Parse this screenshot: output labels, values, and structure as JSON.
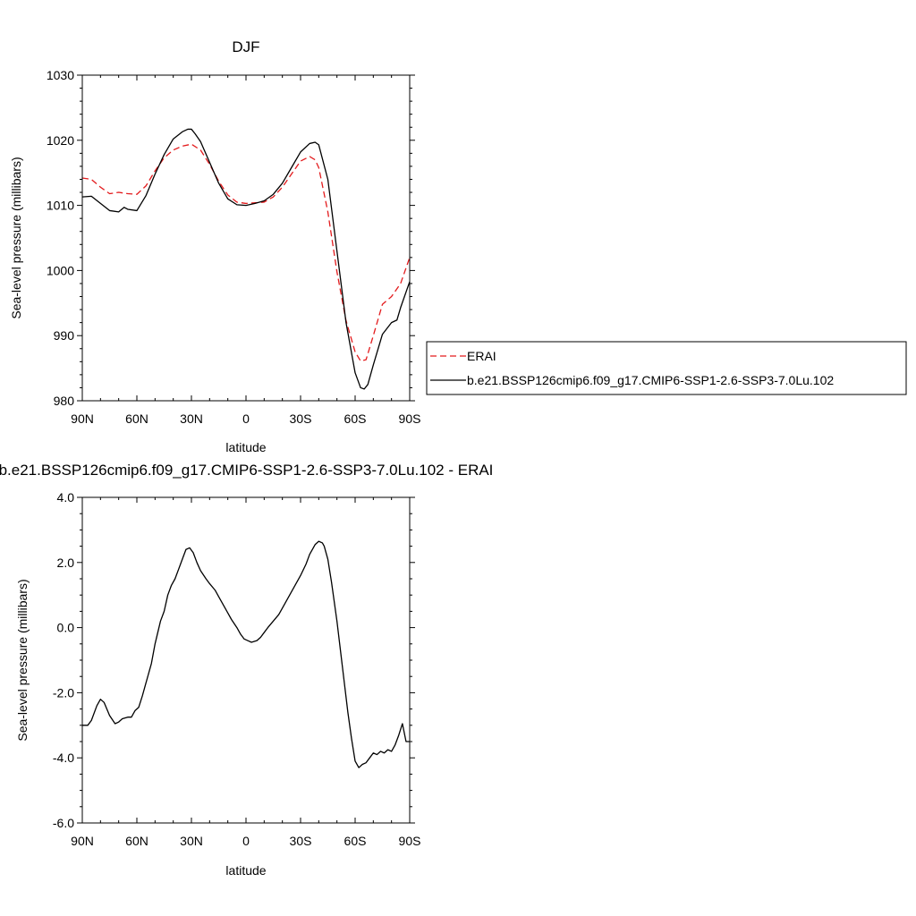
{
  "chart_data": [
    {
      "type": "line",
      "title": "DJF",
      "xlabel": "latitude",
      "ylabel": "Sea-level pressure (millibars)",
      "xlim": [
        90,
        -90
      ],
      "ylim": [
        980,
        1030
      ],
      "x_ticks": [
        90,
        60,
        30,
        0,
        -30,
        -60,
        -90
      ],
      "x_tick_labels": [
        "90N",
        "60N",
        "30N",
        "0",
        "30S",
        "60S",
        "90S"
      ],
      "y_ticks": [
        980,
        990,
        1000,
        1010,
        1020,
        1030
      ],
      "y_tick_labels": [
        "980",
        "990",
        "1000",
        "1010",
        "1020",
        "1030"
      ],
      "grid": false,
      "legend_position": "right",
      "series": [
        {
          "name": "ERAI",
          "color": "#e31a1c",
          "dash": "dashed",
          "x": [
            90,
            85,
            80,
            75,
            70,
            65,
            60,
            55,
            50,
            45,
            40,
            35,
            30,
            25,
            20,
            15,
            10,
            5,
            0,
            -5,
            -10,
            -15,
            -20,
            -25,
            -30,
            -35,
            -38,
            -40,
            -45,
            -50,
            -55,
            -60,
            -63,
            -66,
            -70,
            -75,
            -80,
            -85,
            -90
          ],
          "y": [
            1014.2,
            1014.0,
            1012.8,
            1011.8,
            1012.0,
            1011.8,
            1011.7,
            1013.0,
            1015.3,
            1017.3,
            1018.5,
            1019.1,
            1019.4,
            1018.5,
            1016.3,
            1013.7,
            1011.6,
            1010.5,
            1010.3,
            1010.4,
            1010.5,
            1011.3,
            1012.8,
            1014.8,
            1016.8,
            1017.5,
            1017.0,
            1015.8,
            1009.0,
            999.8,
            992.3,
            987.5,
            986.1,
            986.3,
            990.0,
            994.8,
            996.0,
            998.0,
            1002.0
          ]
        },
        {
          "name": "b.e21.BSSP126cmip6.f09_g17.CMIP6-SSP1-2.6-SSP3-7.0Lu.102",
          "color": "#000000",
          "dash": "solid",
          "x": [
            90,
            85,
            80,
            75,
            70,
            67,
            65,
            60,
            55,
            50,
            45,
            40,
            35,
            32,
            30,
            28,
            25,
            20,
            15,
            10,
            5,
            0,
            -5,
            -10,
            -15,
            -20,
            -25,
            -30,
            -35,
            -38,
            -40,
            -45,
            -50,
            -55,
            -60,
            -63,
            -65,
            -67,
            -70,
            -75,
            -80,
            -83,
            -85,
            -90
          ],
          "y": [
            1011.3,
            1011.4,
            1010.3,
            1009.2,
            1009.0,
            1009.7,
            1009.4,
            1009.2,
            1011.5,
            1014.8,
            1017.8,
            1020.2,
            1021.3,
            1021.7,
            1021.7,
            1021.0,
            1019.8,
            1016.6,
            1013.4,
            1011.0,
            1010.1,
            1010.0,
            1010.3,
            1010.7,
            1011.7,
            1013.4,
            1015.8,
            1018.2,
            1019.5,
            1019.7,
            1019.3,
            1014.0,
            1003.0,
            992.0,
            984.3,
            982.0,
            981.8,
            982.5,
            985.5,
            990.2,
            992.0,
            992.4,
            994.3,
            998.3
          ]
        }
      ]
    },
    {
      "type": "line",
      "title": "b.e21.BSSP126cmip6.f09_g17.CMIP6-SSP1-2.6-SSP3-7.0Lu.102 - ERAI",
      "xlabel": "latitude",
      "ylabel": "Sea-level pressure (millibars)",
      "xlim": [
        90,
        -90
      ],
      "ylim": [
        -6.0,
        4.0
      ],
      "x_ticks": [
        90,
        60,
        30,
        0,
        -30,
        -60,
        -90
      ],
      "x_tick_labels": [
        "90N",
        "60N",
        "30N",
        "0",
        "30S",
        "60S",
        "90S"
      ],
      "y_ticks": [
        -6.0,
        -4.0,
        -2.0,
        0.0,
        2.0,
        4.0
      ],
      "y_tick_labels": [
        "-6.0",
        "-4.0",
        "-2.0",
        "0.0",
        "2.0",
        "4.0"
      ],
      "grid": false,
      "series": [
        {
          "color": "#000000",
          "dash": "solid",
          "x": [
            90,
            87,
            85,
            82,
            80,
            78,
            75,
            72,
            70,
            68,
            65,
            63,
            61,
            59,
            57,
            55,
            52,
            50,
            47,
            45,
            43,
            41,
            39,
            37,
            35,
            33,
            31,
            29,
            27,
            25,
            22,
            20,
            17,
            15,
            12,
            10,
            8,
            5,
            3,
            1,
            -1,
            -3,
            -6,
            -8,
            -10,
            -12,
            -15,
            -18,
            -20,
            -25,
            -30,
            -33,
            -35,
            -38,
            -40,
            -42,
            -43,
            -45,
            -47,
            -50,
            -53,
            -56,
            -58,
            -60,
            -62,
            -63,
            -64,
            -66,
            -68,
            -70,
            -72,
            -74,
            -76,
            -78,
            -80,
            -82,
            -84,
            -86,
            -88,
            -90
          ],
          "y": [
            -3.0,
            -3.0,
            -2.85,
            -2.4,
            -2.2,
            -2.3,
            -2.7,
            -2.95,
            -2.9,
            -2.8,
            -2.75,
            -2.75,
            -2.55,
            -2.45,
            -2.1,
            -1.7,
            -1.1,
            -0.5,
            0.2,
            0.5,
            1.0,
            1.3,
            1.5,
            1.8,
            2.1,
            2.4,
            2.45,
            2.3,
            2.0,
            1.75,
            1.5,
            1.35,
            1.15,
            0.95,
            0.65,
            0.45,
            0.25,
            0.0,
            -0.2,
            -0.35,
            -0.4,
            -0.45,
            -0.4,
            -0.3,
            -0.15,
            0.0,
            0.2,
            0.4,
            0.6,
            1.1,
            1.6,
            1.95,
            2.25,
            2.55,
            2.65,
            2.6,
            2.5,
            2.1,
            1.4,
            0.2,
            -1.2,
            -2.6,
            -3.4,
            -4.1,
            -4.3,
            -4.25,
            -4.2,
            -4.15,
            -4.0,
            -3.85,
            -3.9,
            -3.8,
            -3.85,
            -3.75,
            -3.8,
            -3.6,
            -3.3,
            -2.95,
            -3.5,
            -3.5
          ]
        }
      ]
    }
  ]
}
